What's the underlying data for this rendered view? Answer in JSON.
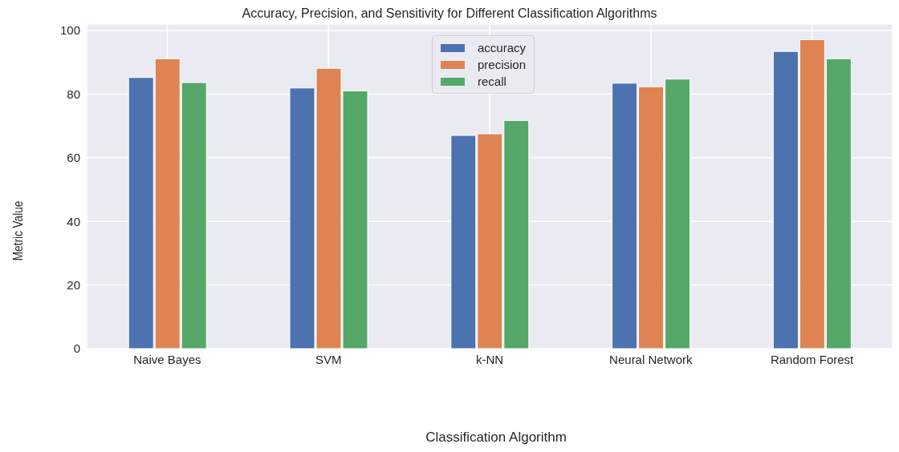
{
  "chart_data": {
    "type": "bar",
    "title": "Accuracy, Precision, and Sensitivity for Different Classification Algorithms",
    "xlabel": "Classification Algorithm",
    "ylabel": "Metric Value",
    "categories": [
      "Naive Bayes",
      "SVM",
      "k-NN",
      "Neural Network",
      "Random Forest"
    ],
    "series": [
      {
        "name": "accuracy",
        "color": "#4c72b0",
        "values": [
          85.2,
          81.9,
          67.0,
          83.4,
          93.4
        ]
      },
      {
        "name": "precision",
        "color": "#dd8452",
        "values": [
          91.1,
          88.1,
          67.5,
          82.3,
          97.1
        ]
      },
      {
        "name": "recall",
        "color": "#55a868",
        "values": [
          83.6,
          81.0,
          71.7,
          84.7,
          91.1
        ]
      }
    ],
    "ylim": [
      0,
      102
    ],
    "yticks": [
      0,
      20,
      40,
      60,
      80,
      100
    ],
    "grid": true,
    "legend": "top"
  }
}
